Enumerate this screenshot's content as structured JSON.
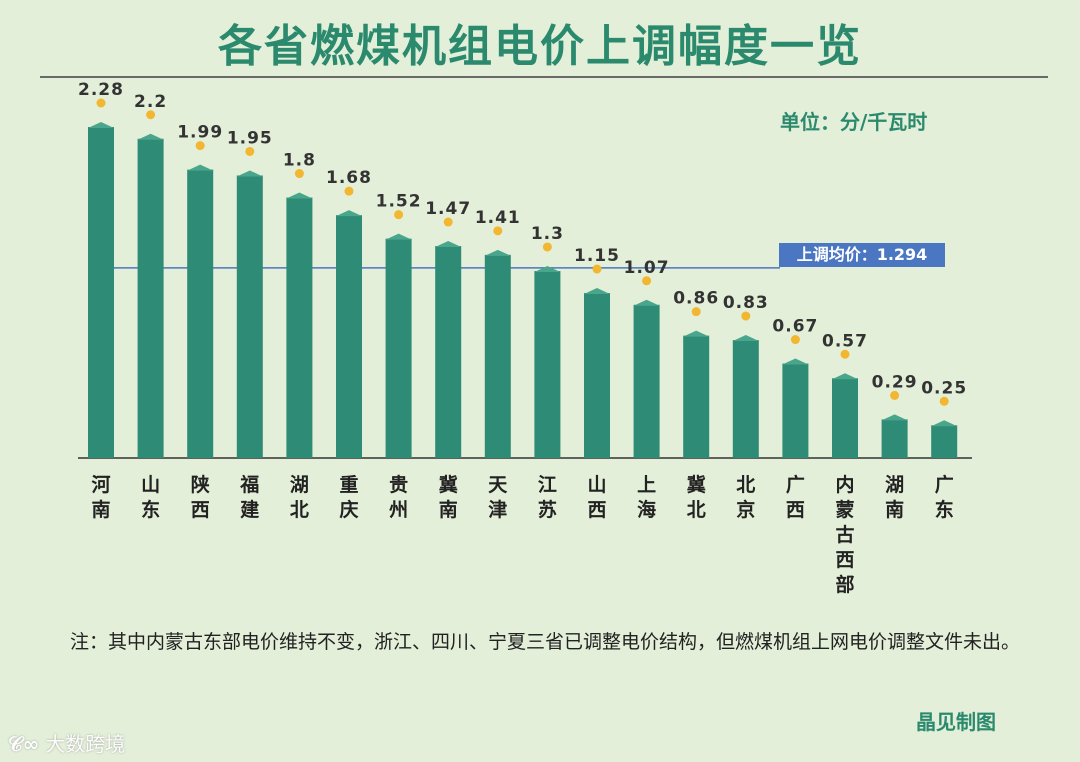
{
  "title": "各省燃煤机组电价上调幅度一览",
  "unit_label": "单位：分/千瓦时",
  "note": "注：其中内蒙古东部电价维持不变，浙江、四川、宁夏三省已调整电价结构，但燃煤机组上网电价调整文件未出。",
  "credit": "晶见制图",
  "watermark": {
    "logo": "𝒞∞",
    "text": "大数跨境"
  },
  "colors": {
    "bar": "#2e8b75",
    "bar_top": "#4aa58d",
    "dot": "#f2b630",
    "avg_line": "#4a76c2",
    "text": "#2b8a6e"
  },
  "chart_data": {
    "type": "bar",
    "categories": [
      "河南",
      "山东",
      "陕西",
      "福建",
      "湖北",
      "重庆",
      "贵州",
      "冀南",
      "天津",
      "江苏",
      "山西",
      "上海",
      "冀北",
      "北京",
      "广西",
      "内蒙古西部",
      "湖南",
      "广东"
    ],
    "values": [
      2.28,
      2.2,
      1.99,
      1.95,
      1.8,
      1.68,
      1.52,
      1.47,
      1.41,
      1.3,
      1.15,
      1.07,
      0.86,
      0.83,
      0.67,
      0.57,
      0.29,
      0.25
    ],
    "value_labels": [
      "2.28",
      "2.2",
      "1.99",
      "1.95",
      "1.8",
      "1.68",
      "1.52",
      "1.47",
      "1.41",
      "1.3",
      "1.15",
      "1.07",
      "0.86",
      "0.83",
      "0.67",
      "0.57",
      "0.29",
      "0.25"
    ],
    "average": {
      "value": 1.294,
      "label": "上调均价：1.294"
    },
    "ylim": [
      0,
      2.28
    ],
    "grid": false,
    "legend": "none"
  }
}
